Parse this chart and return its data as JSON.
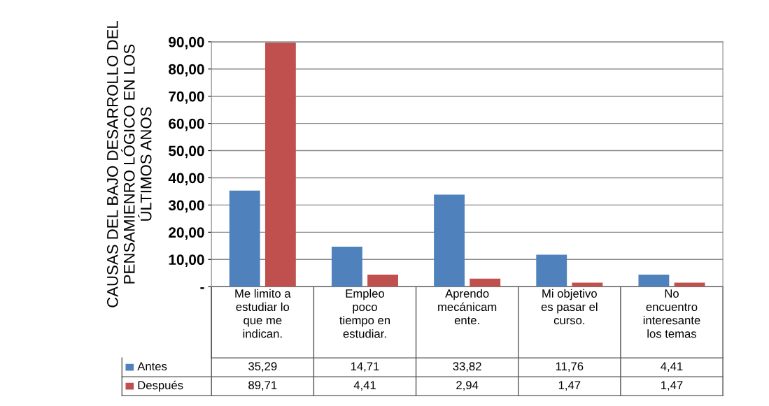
{
  "chart_data": {
    "type": "bar",
    "ylabel": "CAUSAS DEL BAJO DESARROLLO DEL\nPENSAMIENRO LÓGICO EN LOS\nÚLTIMOS ANOS",
    "categories": [
      "Me limito a\nestudiar lo\nque me\nindican.",
      "Empleo\npoco\ntiempo en\nestudiar.",
      "Aprendo\nmecánicam\nente.",
      "Mi objetivo\nes pasar el\ncurso.",
      "No\nencuentro\ninteresante\nlos temas"
    ],
    "series": [
      {
        "name": "Antes",
        "color": "#4f81bd",
        "values": [
          35.29,
          14.71,
          33.82,
          11.76,
          4.41
        ],
        "value_labels": [
          "35,29",
          "14,71",
          "33,82",
          "11,76",
          "4,41"
        ]
      },
      {
        "name": "Después",
        "color": "#c0504d",
        "values": [
          89.71,
          4.41,
          2.94,
          1.47,
          1.47
        ],
        "value_labels": [
          "89,71",
          "4,41",
          "2,94",
          "1,47",
          "1,47"
        ]
      }
    ],
    "ylim": [
      0,
      90
    ],
    "yticks": [
      {
        "value": 0,
        "label": "-"
      },
      {
        "value": 10,
        "label": "10,00"
      },
      {
        "value": 20,
        "label": "20,00"
      },
      {
        "value": 30,
        "label": "30,00"
      },
      {
        "value": 40,
        "label": "40,00"
      },
      {
        "value": 50,
        "label": "50,00"
      },
      {
        "value": 60,
        "label": "60,00"
      },
      {
        "value": 70,
        "label": "70,00"
      },
      {
        "value": 80,
        "label": "80,00"
      },
      {
        "value": 90,
        "label": "90,00"
      }
    ],
    "grid": "y",
    "legend": "bottom left"
  }
}
